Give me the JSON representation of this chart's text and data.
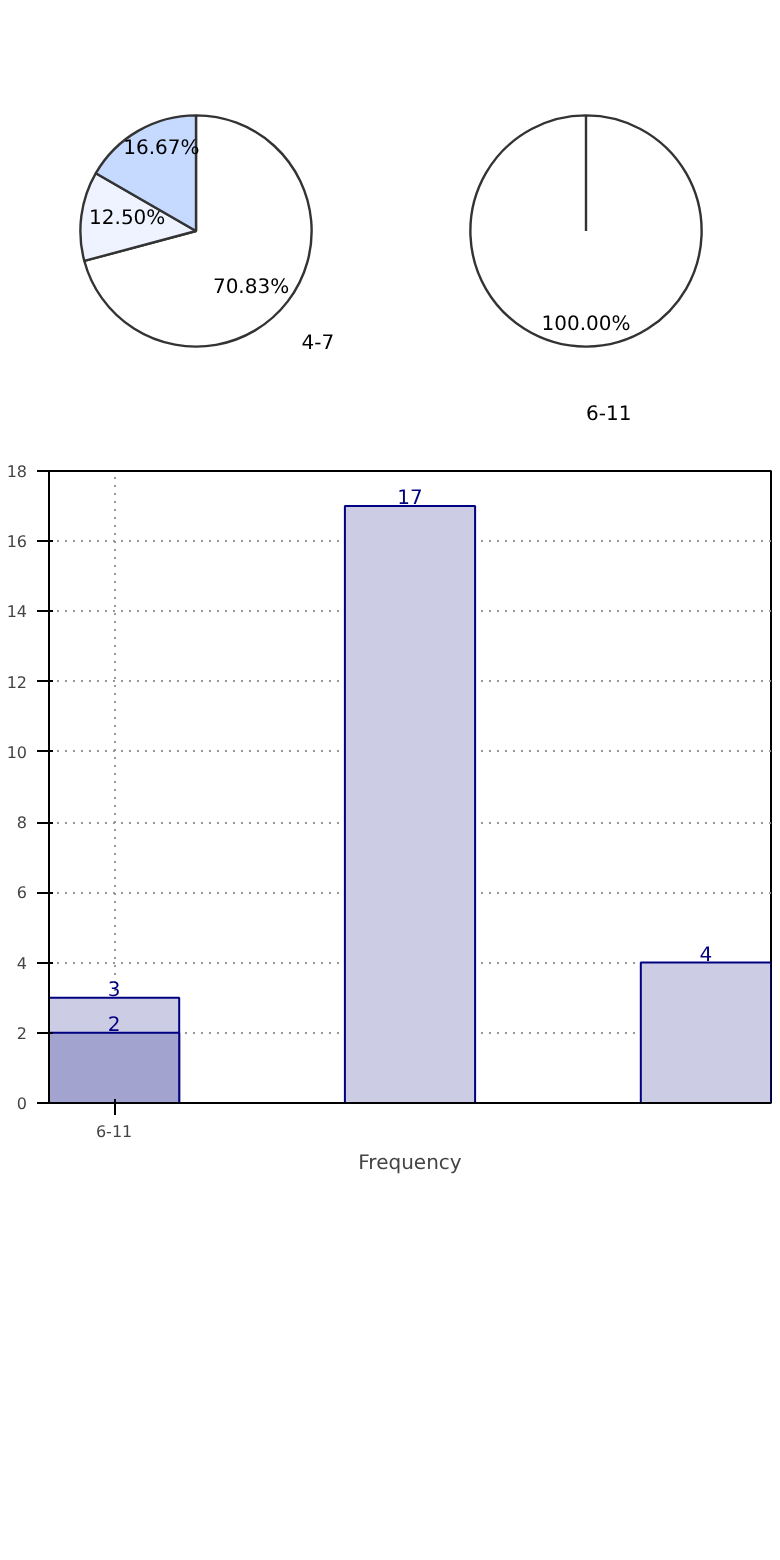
{
  "chart_data": [
    {
      "type": "pie",
      "categories": [
        "4-7",
        null,
        null
      ],
      "values": [
        70.83,
        12.5,
        16.67
      ],
      "colors": [
        "#ffffff",
        "#eef3ff",
        "#c6d9ff"
      ],
      "value_labels": [
        "70.83%",
        "12.50%",
        "16.67%"
      ]
    },
    {
      "type": "pie",
      "categories": [
        "6-11"
      ],
      "values": [
        100.0
      ],
      "colors": [
        "#ffffff"
      ],
      "value_labels": [
        "100.00%"
      ]
    },
    {
      "type": "bar",
      "categories": [
        "6-11",
        null,
        null
      ],
      "xlabel": "Frequency",
      "ylim": [
        0,
        18
      ],
      "yticks": [
        0,
        2,
        4,
        6,
        8,
        10,
        12,
        14,
        16,
        18
      ],
      "grid": true,
      "data_labels": true,
      "series": [
        {
          "color": "#cccce4",
          "values": [
            3,
            17,
            4
          ]
        },
        {
          "color": "#a3a3cf",
          "values": [
            2,
            null,
            null
          ]
        }
      ]
    }
  ]
}
